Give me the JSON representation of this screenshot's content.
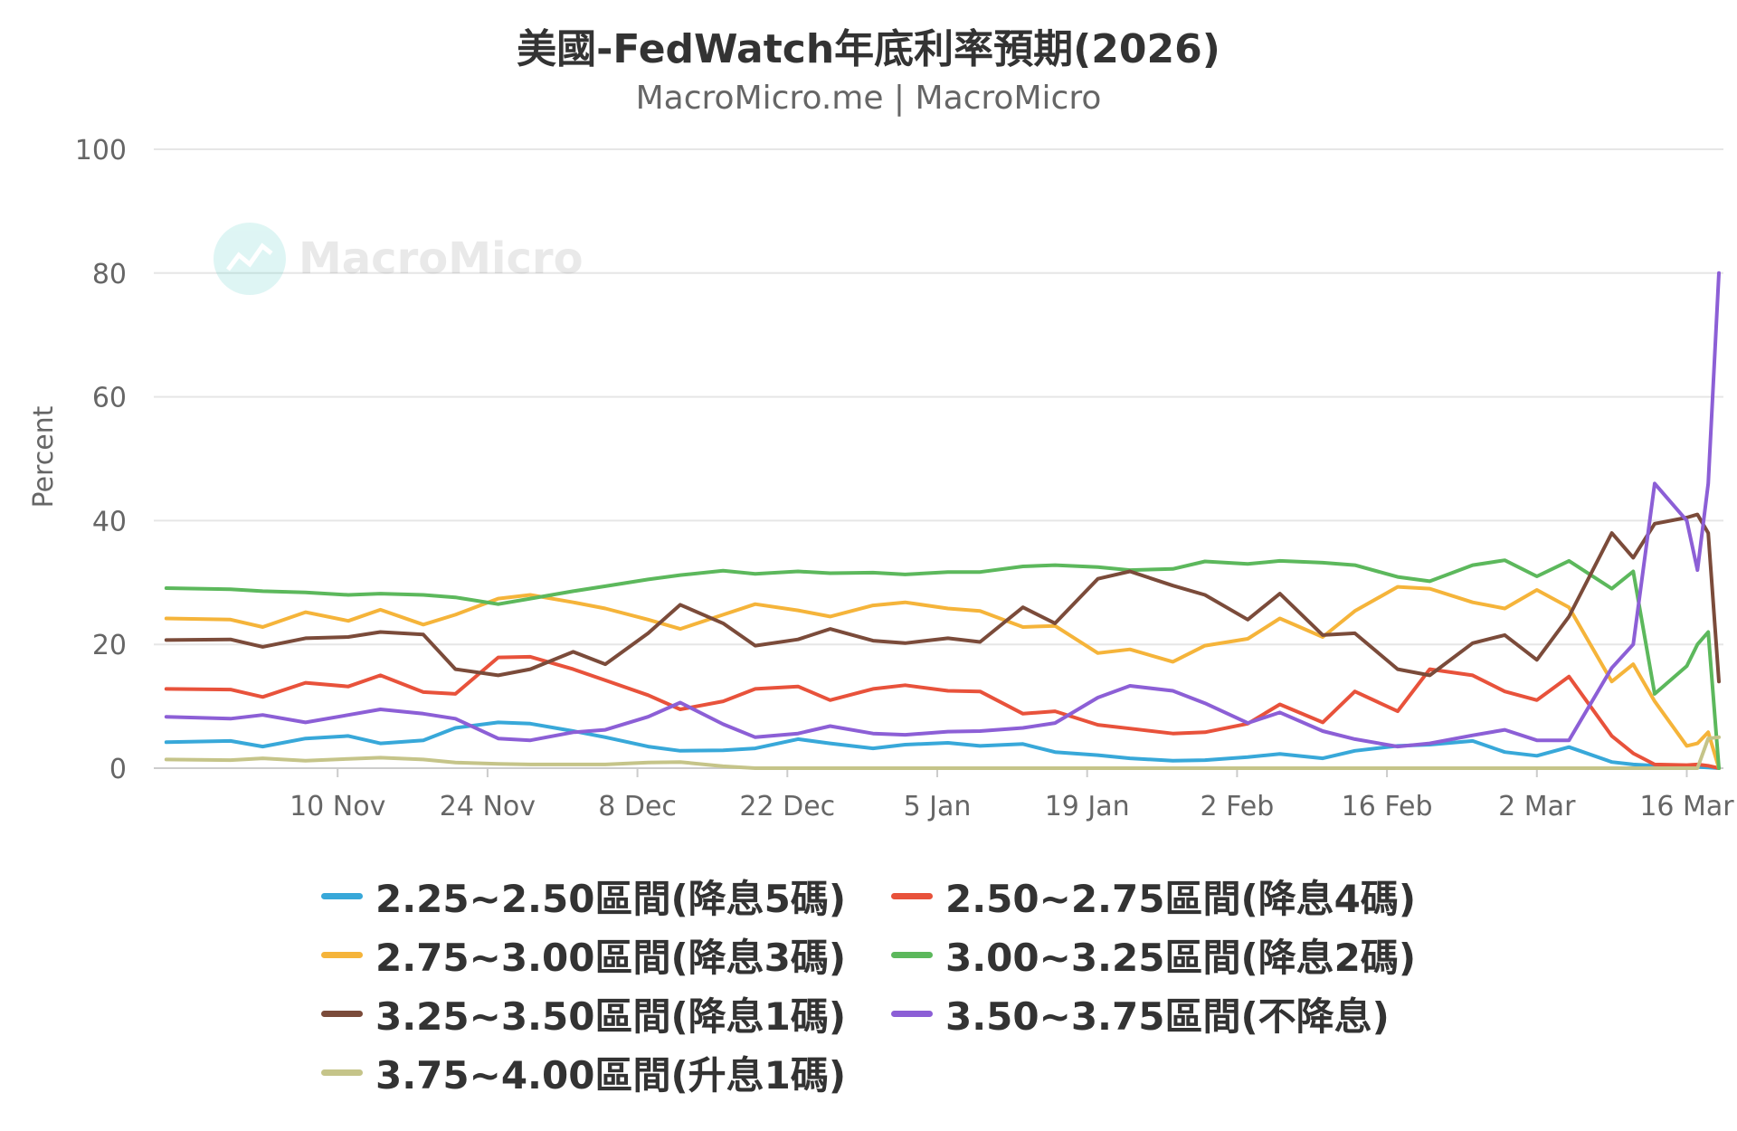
{
  "chart_data": {
    "type": "line",
    "title": "美國-FedWatch年底利率預期(2026)",
    "subtitle": "MacroMicro.me | MacroMicro",
    "watermark": "MacroMicro",
    "ylabel": "Percent",
    "ylim": [
      0,
      100
    ],
    "yticks": [
      0,
      20,
      40,
      60,
      80,
      100
    ],
    "grid": true,
    "legend_position": "bottom",
    "x_range": [
      "2025-10-24",
      "2026-03-19"
    ],
    "xticks": [
      {
        "date": "2025-11-10",
        "label": "10 Nov"
      },
      {
        "date": "2025-11-24",
        "label": "24 Nov"
      },
      {
        "date": "2025-12-08",
        "label": "8 Dec"
      },
      {
        "date": "2025-12-22",
        "label": "22 Dec"
      },
      {
        "date": "2026-01-05",
        "label": "5 Jan"
      },
      {
        "date": "2026-01-19",
        "label": "19 Jan"
      },
      {
        "date": "2026-02-02",
        "label": "2 Feb"
      },
      {
        "date": "2026-02-16",
        "label": "16 Feb"
      },
      {
        "date": "2026-03-02",
        "label": "2 Mar"
      },
      {
        "date": "2026-03-16",
        "label": "16 Mar"
      }
    ],
    "x": [
      "2025-10-25",
      "2025-10-31",
      "2025-11-03",
      "2025-11-07",
      "2025-11-11",
      "2025-11-14",
      "2025-11-18",
      "2025-11-21",
      "2025-11-25",
      "2025-11-28",
      "2025-12-02",
      "2025-12-05",
      "2025-12-09",
      "2025-12-12",
      "2025-12-16",
      "2025-12-19",
      "2025-12-23",
      "2025-12-26",
      "2025-12-30",
      "2026-01-02",
      "2026-01-06",
      "2026-01-09",
      "2026-01-13",
      "2026-01-16",
      "2026-01-20",
      "2026-01-23",
      "2026-01-27",
      "2026-01-30",
      "2026-02-03",
      "2026-02-06",
      "2026-02-10",
      "2026-02-13",
      "2026-02-17",
      "2026-02-20",
      "2026-02-24",
      "2026-02-27",
      "2026-03-02",
      "2026-03-05",
      "2026-03-09",
      "2026-03-11",
      "2026-03-13",
      "2026-03-16",
      "2026-03-17",
      "2026-03-18",
      "2026-03-19"
    ],
    "series": [
      {
        "name": "2.25~2.50區間(降息5碼)",
        "color": "#38a8d9",
        "values": [
          4.2,
          4.4,
          3.5,
          4.8,
          5.2,
          4.0,
          4.5,
          6.5,
          7.4,
          7.2,
          6.0,
          5.0,
          3.5,
          2.8,
          2.9,
          3.2,
          4.7,
          4.0,
          3.2,
          3.8,
          4.1,
          3.6,
          3.9,
          2.6,
          2.1,
          1.6,
          1.2,
          1.3,
          1.8,
          2.3,
          1.6,
          2.8,
          3.6,
          3.8,
          4.4,
          2.6,
          2.0,
          3.4,
          1.0,
          0.6,
          0.4,
          0.3,
          0.2,
          0.1,
          0.0
        ]
      },
      {
        "name": "2.50~2.75區間(降息4碼)",
        "color": "#e8523b",
        "values": [
          12.8,
          12.7,
          11.5,
          13.8,
          13.2,
          15.0,
          12.3,
          12.0,
          17.9,
          18.0,
          16.0,
          14.2,
          11.8,
          9.5,
          10.8,
          12.8,
          13.2,
          11.0,
          12.8,
          13.4,
          12.5,
          12.4,
          8.8,
          9.2,
          7.0,
          6.4,
          5.6,
          5.8,
          7.2,
          10.3,
          7.4,
          12.4,
          9.2,
          16.0,
          15.0,
          12.4,
          11.0,
          14.8,
          5.2,
          2.4,
          0.6,
          0.5,
          0.6,
          0.4,
          0.0
        ]
      },
      {
        "name": "2.75~3.00區間(降息3碼)",
        "color": "#f5b43a",
        "values": [
          24.2,
          24.0,
          22.8,
          25.2,
          23.8,
          25.6,
          23.2,
          24.8,
          27.4,
          28.0,
          26.8,
          25.8,
          24.0,
          22.5,
          24.8,
          26.5,
          25.5,
          24.5,
          26.3,
          26.8,
          25.8,
          25.4,
          22.8,
          23.0,
          18.6,
          19.2,
          17.2,
          19.8,
          20.9,
          24.2,
          21.2,
          25.4,
          29.3,
          29.0,
          26.8,
          25.8,
          28.8,
          26.0,
          14.0,
          16.8,
          10.8,
          3.6,
          4.0,
          5.8,
          0.0
        ]
      },
      {
        "name": "3.00~3.25區間(降息2碼)",
        "color": "#5cb85c",
        "values": [
          29.1,
          28.9,
          28.6,
          28.4,
          28.0,
          28.2,
          28.0,
          27.6,
          26.5,
          27.4,
          28.6,
          29.4,
          30.5,
          31.2,
          31.9,
          31.4,
          31.8,
          31.5,
          31.6,
          31.3,
          31.7,
          31.7,
          32.6,
          32.8,
          32.5,
          32.0,
          32.2,
          33.4,
          33.0,
          33.5,
          33.2,
          32.8,
          30.9,
          30.2,
          32.8,
          33.6,
          31.0,
          33.5,
          29.0,
          31.8,
          12.0,
          16.5,
          20.0,
          22.0,
          0.0
        ]
      },
      {
        "name": "3.25~3.50區間(降息1碼)",
        "color": "#7b4b3a",
        "values": [
          20.7,
          20.8,
          19.6,
          21.0,
          21.2,
          22.0,
          21.6,
          16.0,
          15.0,
          16.0,
          18.8,
          16.8,
          21.8,
          26.4,
          23.4,
          19.8,
          20.8,
          22.5,
          20.6,
          20.2,
          21.0,
          20.4,
          26.0,
          23.4,
          30.6,
          31.8,
          29.5,
          28.0,
          24.0,
          28.2,
          21.5,
          21.8,
          16.0,
          15.0,
          20.2,
          21.5,
          17.5,
          24.5,
          38.0,
          34.0,
          39.5,
          40.5,
          41.0,
          38.0,
          14.0
        ]
      },
      {
        "name": "3.50~3.75區間(不降息)",
        "color": "#8c5fd6",
        "values": [
          8.3,
          8.0,
          8.6,
          7.4,
          8.6,
          9.5,
          8.8,
          8.0,
          4.8,
          4.5,
          5.8,
          6.2,
          8.3,
          10.6,
          7.1,
          5.0,
          5.6,
          6.8,
          5.6,
          5.4,
          5.9,
          6.0,
          6.5,
          7.3,
          11.4,
          13.3,
          12.5,
          10.5,
          7.3,
          9.0,
          6.0,
          4.7,
          3.5,
          4.0,
          5.3,
          6.2,
          4.5,
          4.5,
          16.2,
          20.0,
          46.0,
          40.0,
          32.0,
          46.0,
          80.0
        ]
      },
      {
        "name": "3.75~4.00區間(升息1碼)",
        "color": "#c5c489",
        "values": [
          1.4,
          1.3,
          1.6,
          1.2,
          1.5,
          1.7,
          1.4,
          0.9,
          0.7,
          0.6,
          0.6,
          0.6,
          0.9,
          1.0,
          0.3,
          0.0,
          0.0,
          0.0,
          0.0,
          0.0,
          0.0,
          0.0,
          0.0,
          0.0,
          0.0,
          0.0,
          0.0,
          0.0,
          0.0,
          0.0,
          0.0,
          0.0,
          0.0,
          0.0,
          0.0,
          0.0,
          0.0,
          0.0,
          0.0,
          0.0,
          0.0,
          0.0,
          0.0,
          4.8,
          5.0
        ]
      }
    ]
  }
}
